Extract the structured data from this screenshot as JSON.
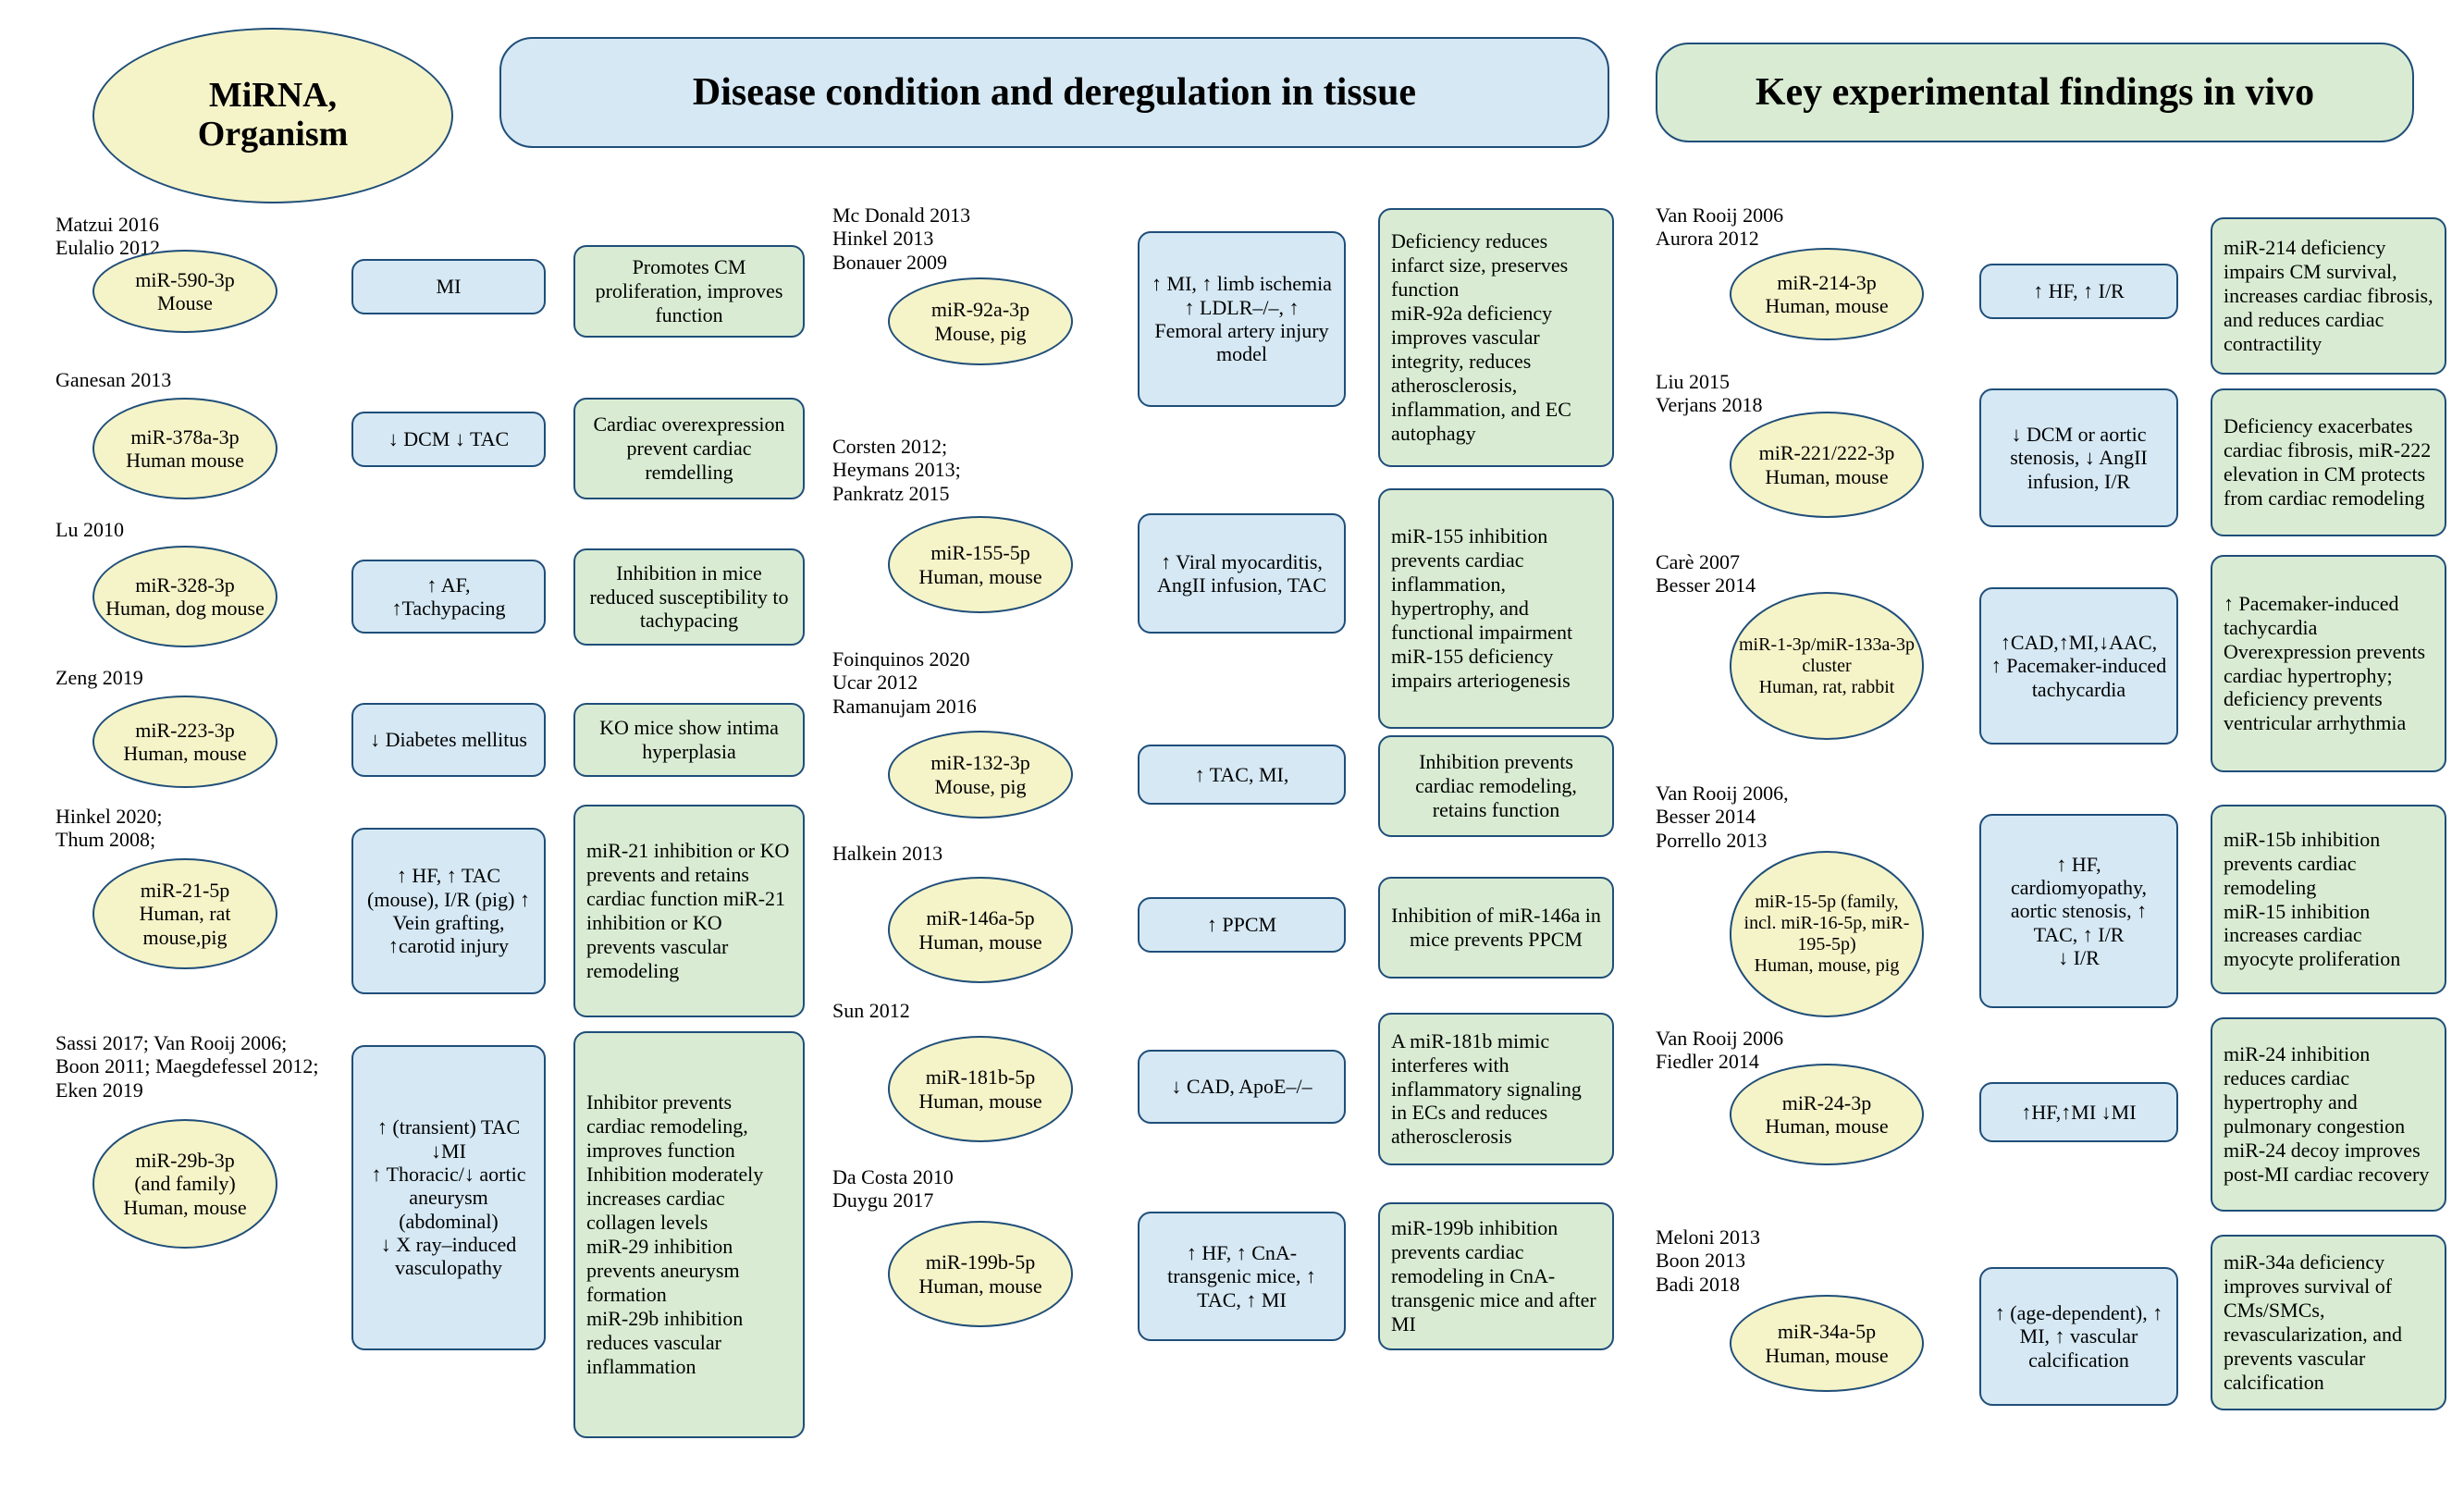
{
  "colors": {
    "yellow": "#f5f3c8",
    "blue": "#d5e8f4",
    "green": "#d9ecd3",
    "border": "#1f4e79",
    "text": "#000000",
    "bg": "#ffffff"
  },
  "typography": {
    "family": "Palatino Linotype, Book Antiqua, Palatino, serif",
    "header_size_pt": 32,
    "body_size_pt": 17,
    "refs_size_pt": 17
  },
  "headers": {
    "h1": "MiRNA,\nOrganism",
    "h2": "Disease condition and deregulation in tissue",
    "h3": "Key experimental findings in vivo"
  },
  "col1": [
    {
      "refs": "Matzui 2016\nEulalio 2012",
      "mirna": "miR-590-3p\nMouse",
      "cond": "MI",
      "find": "Promotes CM proliferation, improves function"
    },
    {
      "refs": "Ganesan 2013",
      "mirna": "miR-378a-3p\nHuman mouse",
      "cond": "↓ DCM   ↓ TAC",
      "find": "Cardiac overexpression prevent cardiac remdelling"
    },
    {
      "refs": "Lu 2010",
      "mirna": "miR-328-3p\nHuman, dog mouse",
      "cond": "↑ AF,\n↑Tachypacing",
      "find": "Inhibition in mice reduced susceptibility to tachypacing"
    },
    {
      "refs": "Zeng 2019",
      "mirna": "miR-223-3p\nHuman, mouse",
      "cond": "↓ Diabetes mellitus",
      "find": "KO mice show intima hyperplasia"
    },
    {
      "refs": "Hinkel 2020;\nThum 2008;",
      "mirna": "miR-21-5p\nHuman, rat mouse,pig",
      "cond": "↑ HF, ↑ TAC (mouse), I/R (pig) ↑ Vein grafting, ↑carotid injury",
      "find": "miR-21 inhibition or KO prevents and retains cardiac function miR-21 inhibition or KO prevents vascular remodeling"
    },
    {
      "refs": "Sassi 2017; Van Rooij 2006;\nBoon 2011; Maegdefessel 2012;\nEken 2019",
      "mirna": "miR-29b-3p\n(and family)\nHuman, mouse",
      "cond": "↑ (transient) TAC\n↓MI\n↑ Thoracic/↓ aortic aneurysm (abdominal)\n↓ X ray–induced vasculopathy",
      "find": "Inhibitor prevents cardiac remodeling, improves function Inhibition moderately increases cardiac collagen levels\nmiR-29 inhibition prevents aneurysm formation\nmiR-29b inhibition reduces vascular inflammation"
    }
  ],
  "col2": [
    {
      "refs": "Mc Donald 2013\nHinkel 2013\nBonauer 2009",
      "mirna": "miR-92a-3p\nMouse, pig",
      "cond": "↑ MI, ↑ limb ischemia\n↑ LDLR–/–, ↑ Femoral artery injury model",
      "find": "Deficiency reduces infarct size, preserves function\nmiR-92a deficiency improves vascular integrity, reduces atherosclerosis, inflammation, and EC autophagy"
    },
    {
      "refs": "Corsten 2012;\nHeymans 2013;\nPankratz 2015",
      "mirna": "miR-155-5p\nHuman, mouse",
      "cond": "↑ Viral myocarditis, AngII infusion, TAC",
      "find": "miR-155 inhibition prevents cardiac inflammation, hypertrophy, and functional impairment\nmiR-155 deficiency impairs arteriogenesis"
    },
    {
      "refs": "Foinquinos 2020\nUcar 2012\nRamanujam 2016",
      "mirna": "miR-132-3p\nMouse, pig",
      "cond": "↑ TAC, MI,",
      "find": "Inhibition prevents cardiac remodeling, retains function"
    },
    {
      "refs": "Halkein 2013",
      "mirna": "miR-146a-5p\nHuman, mouse",
      "cond": "↑ PPCM",
      "find": "Inhibition of miR-146a in mice prevents PPCM"
    },
    {
      "refs": "Sun 2012",
      "mirna": "miR-181b-5p\nHuman, mouse",
      "cond": "↓ CAD, ApoE–/–",
      "find": "A miR-181b mimic interferes with inflammatory signaling in ECs and reduces atherosclerosis"
    },
    {
      "refs": "Da Costa 2010\nDuygu 2017",
      "mirna": "miR-199b-5p\nHuman, mouse",
      "cond": "↑ HF, ↑ CnA-transgenic mice, ↑ TAC, ↑ MI",
      "find": "miR-199b inhibition prevents cardiac remodeling in CnA-transgenic mice and after MI"
    }
  ],
  "col3": [
    {
      "refs": "Van Rooij 2006\nAurora 2012",
      "mirna": "miR-214-3p\nHuman, mouse",
      "cond": "↑ HF, ↑ I/R",
      "find": "miR-214 deficiency impairs CM survival, increases cardiac fibrosis, and reduces cardiac contractility"
    },
    {
      "refs": "Liu 2015\nVerjans 2018",
      "mirna": "miR-221/222-3p\nHuman, mouse",
      "cond": "↓ DCM or aortic stenosis, ↓ AngII infusion, I/R",
      "find": "Deficiency exacerbates cardiac fibrosis, miR-222 elevation in CM protects from cardiac remodeling"
    },
    {
      "refs": "Carè 2007\nBesser 2014",
      "mirna": "miR-1-3p/miR-133a-3p cluster\nHuman, rat, rabbit",
      "cond": "↑CAD,↑MI,↓AAC,\n↑ Pacemaker-induced tachycardia",
      "find": "↑ Pacemaker-induced tachycardia\nOverexpression prevents cardiac hypertrophy; deficiency prevents ventricular arrhythmia"
    },
    {
      "refs": "Van Rooij  2006,\nBesser 2014\nPorrello 2013",
      "mirna": "miR-15-5p (family, incl. miR-16-5p, miR-195-5p)\nHuman, mouse, pig",
      "cond": "↑ HF, cardiomyopathy, aortic stenosis, ↑ TAC, ↑ I/R\n↓ I/R",
      "find": "miR-15b inhibition prevents cardiac remodeling\nmiR-15 inhibition increases cardiac myocyte proliferation"
    },
    {
      "refs": "Van Rooij 2006\nFiedler 2014",
      "mirna": "miR-24-3p\nHuman, mouse",
      "cond": "↑HF,↑MI ↓MI",
      "find": "miR-24 inhibition reduces cardiac hypertrophy and pulmonary congestion\nmiR-24 decoy improves post-MI cardiac recovery"
    },
    {
      "refs": "Meloni 2013\nBoon 2013\nBadi 2018",
      "mirna": "miR-34a-5p\nHuman, mouse",
      "cond": "↑ (age-dependent), ↑ MI, ↑ vascular calcification",
      "find": "miR-34a deficiency improves survival of CMs/SMCs, revascularization, and prevents vascular calcification"
    }
  ]
}
